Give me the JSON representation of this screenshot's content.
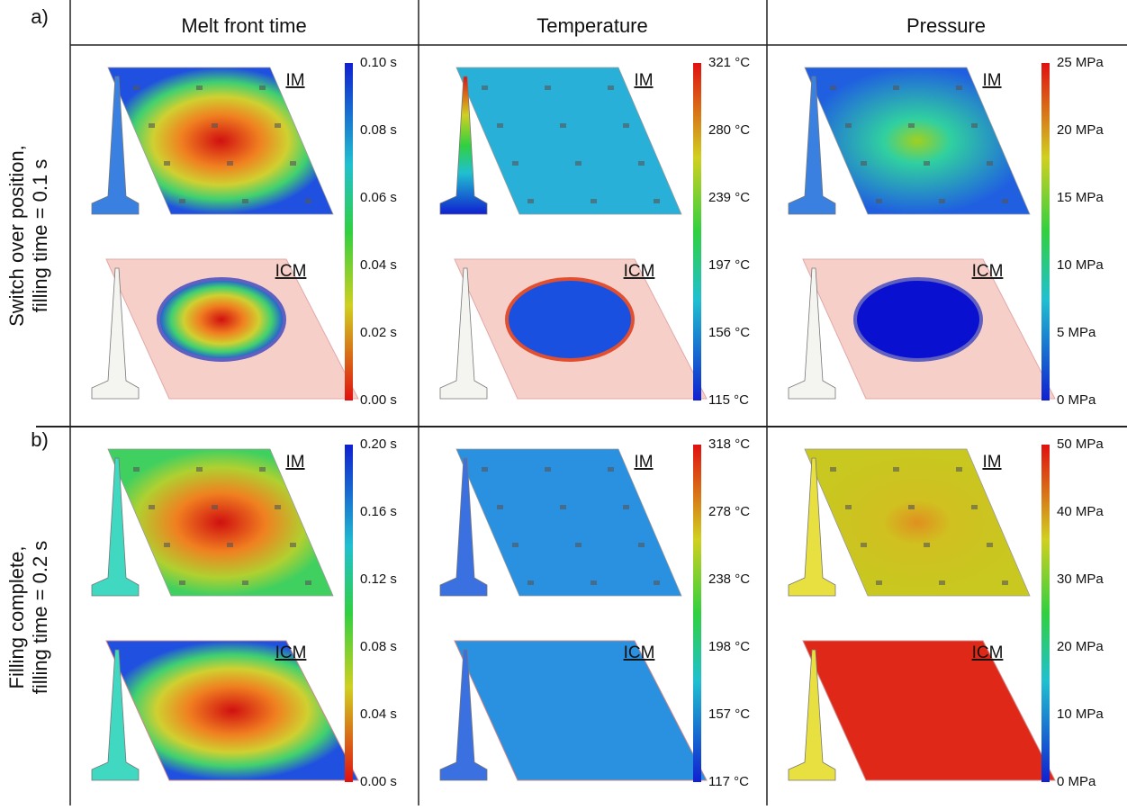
{
  "columns": [
    "Melt front time",
    "Temperature",
    "Pressure"
  ],
  "panels": [
    {
      "label": "a)",
      "row_label": [
        "Switch over position,",
        "filling time = 0.1 s"
      ],
      "cells": [
        {
          "labels": [
            "IM",
            "ICM"
          ],
          "colorbar": [
            "0.10 s",
            "0.08 s",
            "0.06 s",
            "0.04 s",
            "0.02 s",
            "0.00 s"
          ]
        },
        {
          "labels": [
            "IM",
            "ICM"
          ],
          "colorbar": [
            "321 °C",
            "280 °C",
            "239 °C",
            "197 °C",
            "156 °C",
            "115 °C"
          ]
        },
        {
          "labels": [
            "IM",
            "ICM"
          ],
          "colorbar": [
            "25 MPa",
            "20 MPa",
            "15 MPa",
            "10 MPa",
            "5 MPa",
            "0 MPa"
          ]
        }
      ]
    },
    {
      "label": "b)",
      "row_label": [
        "Filling complete,",
        "filling time = 0.2 s"
      ],
      "cells": [
        {
          "labels": [
            "IM",
            "ICM"
          ],
          "colorbar": [
            "0.20 s",
            "0.16 s",
            "0.12 s",
            "0.08 s",
            "0.04 s",
            "0.00 s"
          ]
        },
        {
          "labels": [
            "IM",
            "ICM"
          ],
          "colorbar": [
            "318 °C",
            "278 °C",
            "238 °C",
            "198 °C",
            "157 °C",
            "117 °C"
          ]
        },
        {
          "labels": [
            "IM",
            "ICM"
          ],
          "colorbar": [
            "50 MPa",
            "40 MPa",
            "30 MPa",
            "20 MPa",
            "10 MPa",
            "0 MPa"
          ]
        }
      ]
    }
  ]
}
